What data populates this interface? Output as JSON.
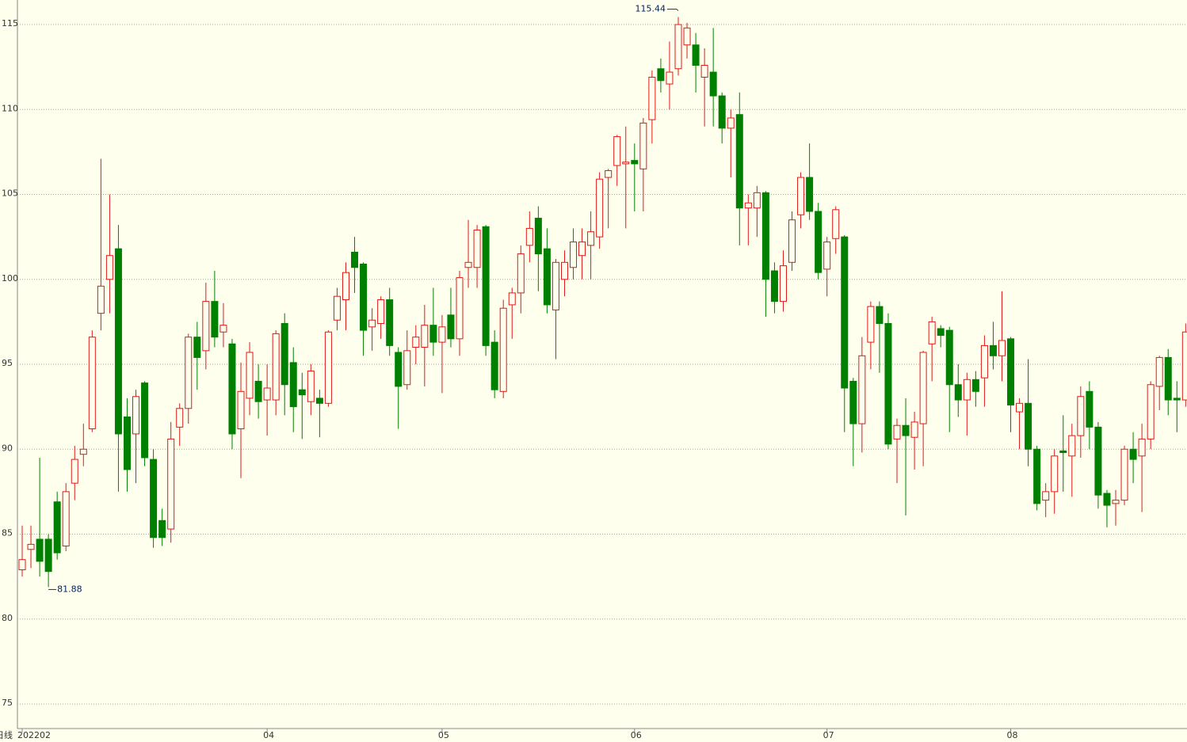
{
  "chart_data": {
    "type": "candlestick",
    "period_label": "日线",
    "categories": [
      "202202",
      null,
      null,
      null,
      null,
      null,
      null,
      null,
      null,
      null,
      null,
      null,
      null,
      null,
      null,
      null,
      null,
      null,
      null,
      null,
      null,
      null,
      null,
      null,
      null,
      null,
      null,
      null,
      "04",
      null,
      null,
      null,
      null,
      null,
      null,
      null,
      null,
      null,
      null,
      null,
      null,
      null,
      null,
      null,
      null,
      null,
      null,
      null,
      "05",
      null,
      null,
      null,
      null,
      null,
      null,
      null,
      null,
      null,
      null,
      null,
      null,
      null,
      null,
      null,
      null,
      null,
      null,
      null,
      null,
      null,
      "06",
      null,
      null,
      null,
      null,
      null,
      null,
      null,
      null,
      null,
      null,
      null,
      null,
      null,
      null,
      null,
      null,
      null,
      null,
      null,
      null,
      null,
      "07",
      null,
      null,
      null,
      null,
      null,
      null,
      null,
      null,
      null,
      null,
      null,
      null,
      null,
      null,
      null,
      null,
      null,
      null,
      null,
      null,
      "08",
      null,
      null,
      null,
      null,
      null,
      null,
      null,
      null,
      null,
      null,
      null,
      null,
      null,
      null,
      null,
      null,
      null,
      null,
      null,
      null
    ],
    "open": [
      82.9,
      84.1,
      84.7,
      84.7,
      86.9,
      84.3,
      88,
      89.7,
      91.2,
      98,
      100,
      101.8,
      91.9,
      90.9,
      93.9,
      89.4,
      85.8,
      85.3,
      91.3,
      92.4,
      96.6,
      95.8,
      98.7,
      96.9,
      96.2,
      91.2,
      93,
      94,
      92.9,
      92.9,
      97.4,
      95.1,
      93.5,
      92.8,
      93,
      92.7,
      97.6,
      98.8,
      101.6,
      100.9,
      97.2,
      97.4,
      98.8,
      95.7,
      93.8,
      96,
      96,
      97.3,
      96.3,
      97.9,
      96.5,
      100.7,
      100.7,
      103.1,
      96.3,
      93.4,
      98.5,
      99.2,
      102,
      103.6,
      101.8,
      98.2,
      100,
      100.7,
      101.4,
      102,
      102.5,
      106,
      106.7,
      106.8,
      107,
      106.5,
      109.4,
      112.4,
      111.5,
      112.4,
      113.8,
      113.8,
      111.9,
      112.2,
      110.8,
      108.9,
      109.7,
      104.2,
      104.2,
      105.1,
      100.5,
      98.7,
      101,
      103.8,
      106,
      104,
      100.6,
      102.4,
      102.5,
      94,
      91.5,
      96.3,
      98.4,
      97.4,
      90.6,
      91.4,
      90.7,
      91.5,
      96.2,
      97.1,
      97,
      93.8,
      92.9,
      94.1,
      94.2,
      96.1,
      95.5,
      96.5,
      92.2,
      92.7,
      90,
      87,
      87.5,
      89.9,
      89.6,
      90.8,
      93.4,
      91.3,
      87.4,
      86.8,
      87,
      90,
      89.6,
      90.6,
      93.7,
      95.4,
      93,
      92.9
    ],
    "high": [
      85.5,
      85.5,
      89.5,
      85,
      87.5,
      88,
      90.2,
      91.5,
      97,
      107.1,
      105,
      103.2,
      93,
      93.5,
      94,
      90,
      86.5,
      91.6,
      92.7,
      96.8,
      97.5,
      99.8,
      100.5,
      98.6,
      96.5,
      95.1,
      96.3,
      95,
      95,
      97,
      98,
      96,
      94.5,
      95,
      93.5,
      97,
      99.5,
      101,
      102.5,
      101,
      98.3,
      99,
      99.5,
      96,
      97,
      97.3,
      98.5,
      99.5,
      97.9,
      99.5,
      100.5,
      103.5,
      103.2,
      103.2,
      97,
      98.8,
      99.5,
      102,
      104,
      104.3,
      103,
      101.2,
      101.7,
      103,
      103,
      104,
      106.3,
      106.5,
      108.5,
      109,
      108,
      109.5,
      112.3,
      113,
      114,
      115.44,
      115.1,
      114.5,
      113.6,
      114.8,
      111,
      110,
      111,
      105,
      105.5,
      105.2,
      101,
      101.7,
      104,
      106.3,
      108,
      104.5,
      102.5,
      104.3,
      102.6,
      94.2,
      96.6,
      98.7,
      98.7,
      98,
      91.8,
      93,
      92.2,
      95.8,
      97.8,
      97.3,
      97.2,
      95,
      94.5,
      94.6,
      96.7,
      97.5,
      99.3,
      96.6,
      93,
      95.3,
      90.2,
      88,
      90,
      92,
      91.5,
      93.7,
      94,
      91.6,
      87.6,
      87.6,
      90.2,
      91,
      91.5,
      94,
      95.5,
      95.9,
      94,
      97.4
    ],
    "low": [
      82.5,
      83,
      82.5,
      81.88,
      83.5,
      84,
      87,
      89,
      91,
      97,
      98,
      87.5,
      87.5,
      88,
      89,
      84.2,
      84.3,
      84.5,
      90.2,
      91.5,
      93.5,
      94.7,
      96,
      96,
      90,
      88.3,
      92,
      91.8,
      90.8,
      92,
      92,
      91,
      90.6,
      92,
      90.7,
      92.5,
      97,
      97,
      99.2,
      95.5,
      95.8,
      96.5,
      95.5,
      91.2,
      93.5,
      95,
      93.7,
      95.5,
      93.3,
      96,
      95.5,
      99.5,
      99.5,
      95.5,
      93,
      93,
      96.5,
      98,
      101,
      99.3,
      98,
      95.3,
      99,
      100,
      100,
      100,
      101.8,
      103,
      105.5,
      103,
      104,
      104,
      108,
      111,
      110,
      112,
      113,
      111,
      109,
      109,
      108,
      106,
      102,
      102,
      102.5,
      97.8,
      98,
      98.1,
      100.5,
      103,
      103.5,
      100,
      99,
      101.5,
      91,
      89,
      89.8,
      94.7,
      94.5,
      90,
      88,
      86.1,
      88.8,
      89,
      94,
      96,
      91,
      91.9,
      90.8,
      92.5,
      92.5,
      94.7,
      94,
      91,
      90,
      89,
      86.4,
      86,
      86.2,
      87.5,
      87.2,
      89.5,
      90,
      86.5,
      85.4,
      85.5,
      86.7,
      88,
      86.3,
      90,
      92.3,
      92,
      91,
      92.5
    ],
    "close": [
      83.5,
      84.4,
      83.4,
      82.8,
      83.9,
      87.5,
      89.4,
      90,
      96.6,
      99.6,
      101.4,
      90.9,
      88.8,
      93.1,
      89.5,
      84.8,
      84.8,
      90.6,
      92.4,
      96.6,
      95.4,
      98.7,
      96.6,
      97.3,
      90.9,
      93.4,
      95.7,
      92.8,
      93.6,
      96.8,
      93.8,
      92.5,
      93.2,
      94.6,
      92.7,
      96.9,
      99,
      100.4,
      100.7,
      97,
      97.6,
      98.8,
      96.1,
      93.7,
      95.8,
      96.6,
      97.3,
      96.3,
      97.2,
      96.5,
      100.1,
      101,
      102.9,
      96.1,
      93.5,
      98.3,
      99.2,
      101.5,
      103,
      101.5,
      98.5,
      101,
      101,
      102.2,
      102.2,
      102.8,
      105.9,
      106.4,
      108.4,
      106.9,
      106.8,
      109.2,
      111.9,
      111.7,
      112.2,
      115,
      114.8,
      112.6,
      112.6,
      110.8,
      108.9,
      109.5,
      104.2,
      104.5,
      105.1,
      100,
      98.7,
      100.8,
      103.5,
      106,
      104,
      100.4,
      102.2,
      104.1,
      93.6,
      91.5,
      95.5,
      98.4,
      97.4,
      90.3,
      91.4,
      90.8,
      91.6,
      95.7,
      97.5,
      96.7,
      93.8,
      92.9,
      94.1,
      93.4,
      96.1,
      95.5,
      96.4,
      92.6,
      92.7,
      90,
      86.8,
      87.5,
      89.6,
      89.8,
      90.8,
      93.1,
      91.3,
      87.3,
      86.7,
      87,
      90,
      89.4,
      90.6,
      93.8,
      95.4,
      92.9,
      92.9,
      96.9
    ],
    "up_color": "#e01818",
    "down_color": "#008000",
    "annotations": [
      {
        "value": 115.44
      },
      {
        "value": 81.88
      }
    ],
    "ylim": [
      75,
      115
    ],
    "yticks": [
      75,
      80,
      85,
      90,
      95,
      100,
      105,
      110,
      115
    ],
    "grid": true
  }
}
